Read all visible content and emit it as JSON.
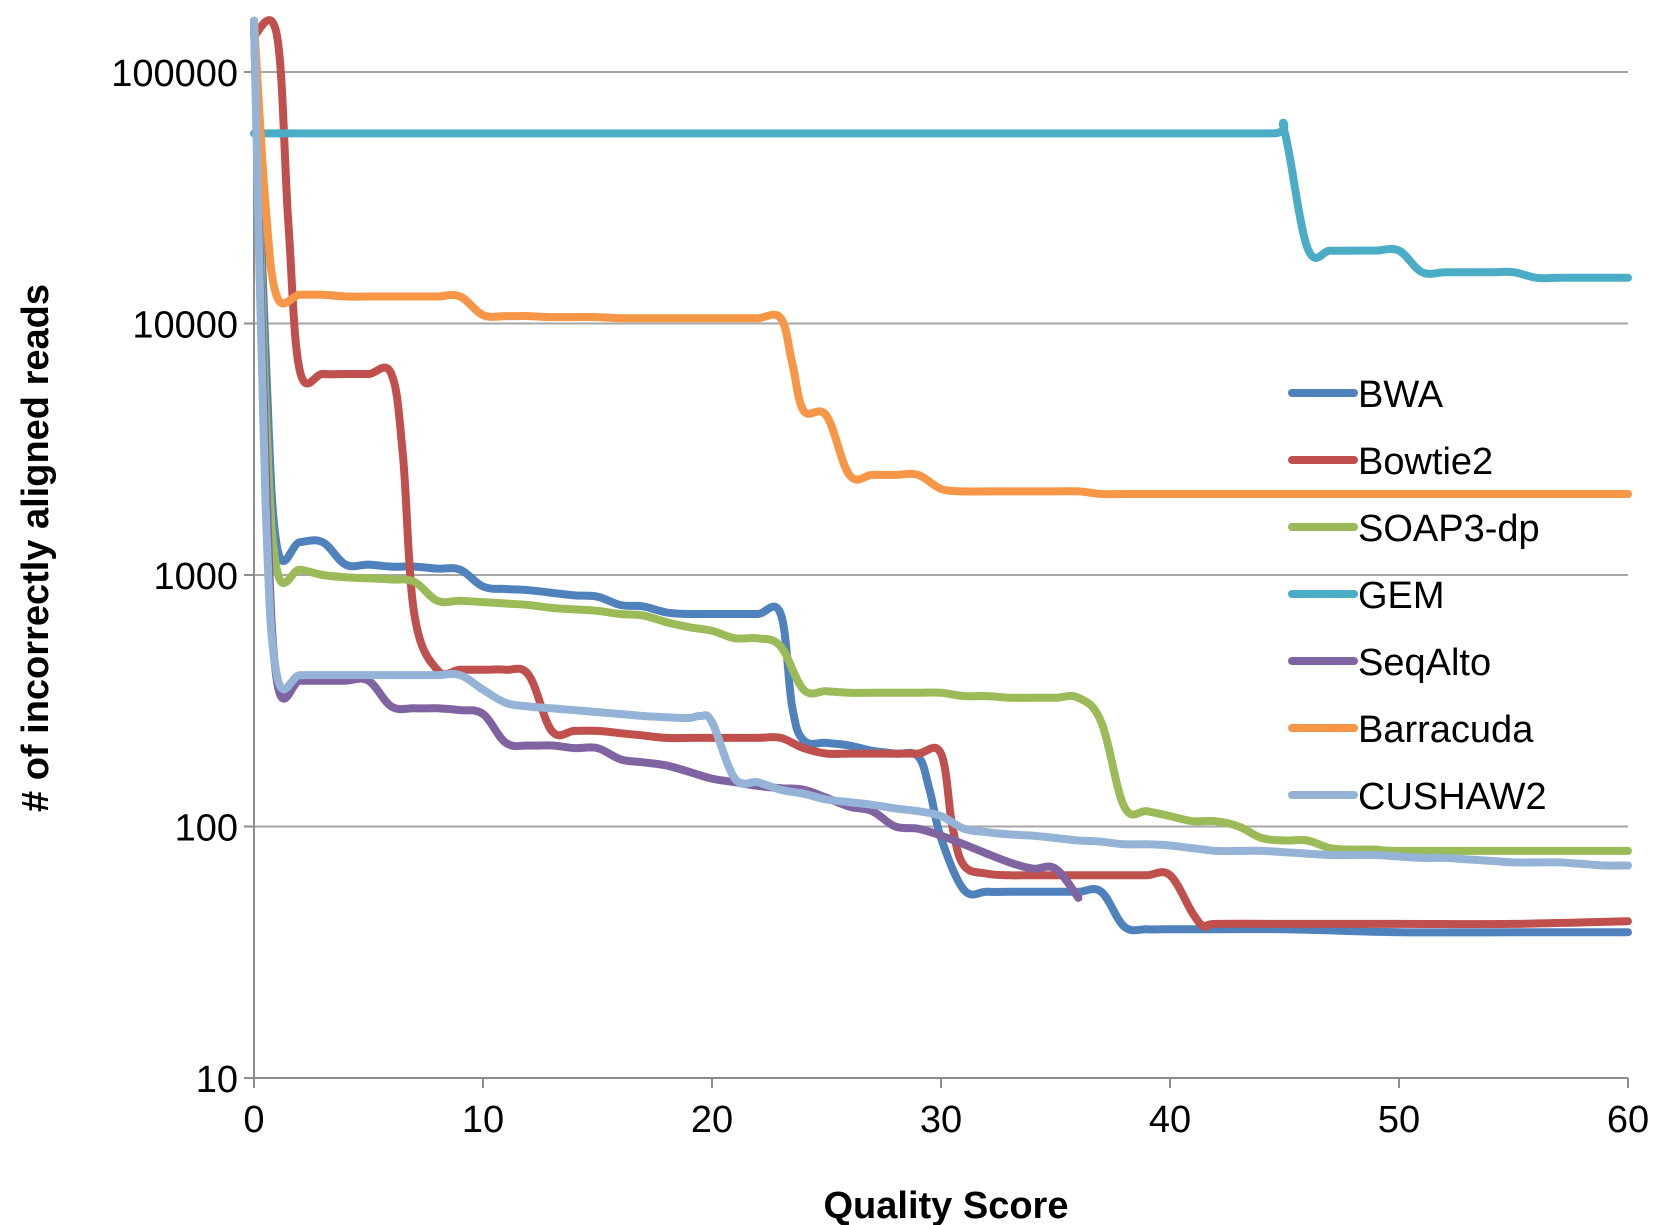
{
  "chart_data": {
    "type": "line",
    "title": "",
    "xlabel": "Quality Score",
    "ylabel": "# of incorrectly aligned reads",
    "x_scale": "linear",
    "y_scale": "log",
    "xlim": [
      0,
      60
    ],
    "ylim": [
      10,
      160000
    ],
    "x_ticks": [
      "0",
      "10",
      "20",
      "30",
      "40",
      "50",
      "60"
    ],
    "y_ticks": [
      "10",
      "100",
      "1000",
      "10000",
      "100000"
    ],
    "grid": "horizontal",
    "legend_position": "right",
    "series": [
      {
        "name": "BWA",
        "color": "#4f81bd",
        "points": [
          [
            0,
            160000
          ],
          [
            0.5,
            8000
          ],
          [
            1,
            1300
          ],
          [
            2,
            1350
          ],
          [
            3,
            1350
          ],
          [
            4,
            1100
          ],
          [
            5,
            1100
          ],
          [
            6,
            1080
          ],
          [
            7,
            1080
          ],
          [
            8,
            1060
          ],
          [
            9,
            1050
          ],
          [
            10,
            900
          ],
          [
            11,
            880
          ],
          [
            12,
            870
          ],
          [
            13,
            850
          ],
          [
            14,
            830
          ],
          [
            15,
            820
          ],
          [
            16,
            760
          ],
          [
            17,
            750
          ],
          [
            18,
            710
          ],
          [
            19,
            700
          ],
          [
            20,
            700
          ],
          [
            21,
            700
          ],
          [
            22,
            700
          ],
          [
            23,
            700
          ],
          [
            23.5,
            300
          ],
          [
            24,
            220
          ],
          [
            25,
            215
          ],
          [
            26,
            210
          ],
          [
            27,
            200
          ],
          [
            28,
            195
          ],
          [
            29,
            190
          ],
          [
            29.5,
            140
          ],
          [
            30,
            90
          ],
          [
            31,
            56
          ],
          [
            32,
            55
          ],
          [
            33,
            55
          ],
          [
            34,
            55
          ],
          [
            35,
            55
          ],
          [
            36,
            55
          ],
          [
            37,
            55
          ],
          [
            38,
            40
          ],
          [
            39,
            39
          ],
          [
            40,
            39
          ],
          [
            45,
            39
          ],
          [
            50,
            38
          ],
          [
            55,
            38
          ],
          [
            60,
            38
          ]
        ]
      },
      {
        "name": "Bowtie2",
        "color": "#c0504d",
        "points": [
          [
            0,
            140000
          ],
          [
            1,
            140000
          ],
          [
            1.5,
            25000
          ],
          [
            2,
            6500
          ],
          [
            3,
            6300
          ],
          [
            4,
            6300
          ],
          [
            5,
            6300
          ],
          [
            6,
            6300
          ],
          [
            6.5,
            3000
          ],
          [
            7,
            700
          ],
          [
            8,
            420
          ],
          [
            9,
            420
          ],
          [
            10,
            420
          ],
          [
            11,
            420
          ],
          [
            12,
            400
          ],
          [
            13,
            240
          ],
          [
            14,
            240
          ],
          [
            15,
            240
          ],
          [
            16,
            235
          ],
          [
            17,
            230
          ],
          [
            18,
            225
          ],
          [
            19,
            225
          ],
          [
            20,
            225
          ],
          [
            21,
            225
          ],
          [
            22,
            225
          ],
          [
            23,
            225
          ],
          [
            24,
            205
          ],
          [
            25,
            195
          ],
          [
            26,
            195
          ],
          [
            27,
            195
          ],
          [
            28,
            195
          ],
          [
            29,
            195
          ],
          [
            30,
            195
          ],
          [
            30.5,
            100
          ],
          [
            31,
            70
          ],
          [
            32,
            65
          ],
          [
            33,
            64
          ],
          [
            34,
            64
          ],
          [
            35,
            64
          ],
          [
            36,
            64
          ],
          [
            37,
            64
          ],
          [
            38,
            64
          ],
          [
            39,
            64
          ],
          [
            40,
            64
          ],
          [
            41,
            45
          ],
          [
            41.5,
            40
          ],
          [
            42,
            41
          ],
          [
            45,
            41
          ],
          [
            50,
            41
          ],
          [
            55,
            41
          ],
          [
            60,
            42
          ]
        ]
      },
      {
        "name": "SOAP3-dp",
        "color": "#9bbb59",
        "points": [
          [
            0,
            150000
          ],
          [
            0.5,
            5000
          ],
          [
            1,
            1050
          ],
          [
            2,
            1050
          ],
          [
            3,
            1000
          ],
          [
            4,
            980
          ],
          [
            5,
            970
          ],
          [
            6,
            960
          ],
          [
            7,
            940
          ],
          [
            8,
            790
          ],
          [
            9,
            790
          ],
          [
            10,
            780
          ],
          [
            11,
            770
          ],
          [
            12,
            760
          ],
          [
            13,
            740
          ],
          [
            14,
            730
          ],
          [
            15,
            720
          ],
          [
            16,
            700
          ],
          [
            17,
            690
          ],
          [
            18,
            650
          ],
          [
            19,
            620
          ],
          [
            20,
            600
          ],
          [
            21,
            560
          ],
          [
            22,
            560
          ],
          [
            23,
            520
          ],
          [
            24,
            350
          ],
          [
            25,
            345
          ],
          [
            26,
            340
          ],
          [
            27,
            340
          ],
          [
            28,
            340
          ],
          [
            29,
            340
          ],
          [
            30,
            340
          ],
          [
            31,
            330
          ],
          [
            32,
            330
          ],
          [
            33,
            325
          ],
          [
            34,
            325
          ],
          [
            35,
            325
          ],
          [
            36,
            325
          ],
          [
            37,
            260
          ],
          [
            38,
            120
          ],
          [
            39,
            115
          ],
          [
            40,
            110
          ],
          [
            41,
            105
          ],
          [
            42,
            105
          ],
          [
            43,
            100
          ],
          [
            44,
            90
          ],
          [
            45,
            88
          ],
          [
            46,
            88
          ],
          [
            47,
            82
          ],
          [
            48,
            81
          ],
          [
            49,
            81
          ],
          [
            50,
            80
          ],
          [
            55,
            80
          ],
          [
            60,
            80
          ]
        ]
      },
      {
        "name": "GEM",
        "color": "#4bacc6",
        "points": [
          [
            0,
            57000
          ],
          [
            5,
            57000
          ],
          [
            10,
            57000
          ],
          [
            20,
            57000
          ],
          [
            30,
            57000
          ],
          [
            40,
            57000
          ],
          [
            44.5,
            57000
          ],
          [
            45,
            58000
          ],
          [
            46,
            20000
          ],
          [
            47,
            19500
          ],
          [
            48,
            19500
          ],
          [
            49,
            19500
          ],
          [
            50,
            19500
          ],
          [
            51,
            16000
          ],
          [
            52,
            16000
          ],
          [
            53,
            16000
          ],
          [
            54,
            16000
          ],
          [
            55,
            16000
          ],
          [
            56,
            15200
          ],
          [
            57,
            15200
          ],
          [
            58,
            15200
          ],
          [
            60,
            15200
          ]
        ]
      },
      {
        "name": "SeqAlto",
        "color": "#8064a2",
        "points": [
          [
            0,
            160000
          ],
          [
            0.5,
            3000
          ],
          [
            1,
            380
          ],
          [
            2,
            380
          ],
          [
            3,
            380
          ],
          [
            4,
            380
          ],
          [
            5,
            380
          ],
          [
            6,
            300
          ],
          [
            7,
            295
          ],
          [
            8,
            295
          ],
          [
            9,
            290
          ],
          [
            10,
            280
          ],
          [
            11,
            215
          ],
          [
            12,
            210
          ],
          [
            13,
            210
          ],
          [
            14,
            205
          ],
          [
            15,
            205
          ],
          [
            16,
            185
          ],
          [
            17,
            180
          ],
          [
            18,
            175
          ],
          [
            19,
            165
          ],
          [
            20,
            155
          ],
          [
            21,
            150
          ],
          [
            22,
            145
          ],
          [
            23,
            142
          ],
          [
            24,
            140
          ],
          [
            25,
            130
          ],
          [
            26,
            120
          ],
          [
            27,
            115
          ],
          [
            28,
            100
          ],
          [
            29,
            98
          ],
          [
            30,
            92
          ],
          [
            31,
            85
          ],
          [
            32,
            78
          ],
          [
            33,
            72
          ],
          [
            34,
            68
          ],
          [
            35,
            68
          ],
          [
            36,
            52
          ]
        ]
      },
      {
        "name": "Barracuda",
        "color": "#f79646",
        "points": [
          [
            0,
            160000
          ],
          [
            0.5,
            30000
          ],
          [
            1,
            12800
          ],
          [
            2,
            13000
          ],
          [
            3,
            13000
          ],
          [
            4,
            12800
          ],
          [
            5,
            12800
          ],
          [
            6,
            12800
          ],
          [
            7,
            12800
          ],
          [
            8,
            12800
          ],
          [
            9,
            12800
          ],
          [
            10,
            10800
          ],
          [
            11,
            10700
          ],
          [
            12,
            10700
          ],
          [
            13,
            10600
          ],
          [
            14,
            10600
          ],
          [
            15,
            10600
          ],
          [
            16,
            10500
          ],
          [
            17,
            10500
          ],
          [
            18,
            10500
          ],
          [
            19,
            10500
          ],
          [
            20,
            10500
          ],
          [
            21,
            10500
          ],
          [
            22,
            10500
          ],
          [
            23,
            10500
          ],
          [
            23.5,
            7000
          ],
          [
            24,
            4500
          ],
          [
            25,
            4300
          ],
          [
            26,
            2500
          ],
          [
            27,
            2500
          ],
          [
            28,
            2500
          ],
          [
            29,
            2500
          ],
          [
            30,
            2200
          ],
          [
            31,
            2150
          ],
          [
            32,
            2150
          ],
          [
            33,
            2150
          ],
          [
            34,
            2150
          ],
          [
            35,
            2150
          ],
          [
            36,
            2150
          ],
          [
            37,
            2100
          ],
          [
            38,
            2100
          ],
          [
            40,
            2100
          ],
          [
            45,
            2100
          ],
          [
            50,
            2100
          ],
          [
            55,
            2100
          ],
          [
            60,
            2100
          ]
        ]
      },
      {
        "name": "CUSHAW2",
        "color": "#95b3d7",
        "points": [
          [
            0,
            160000
          ],
          [
            0.5,
            2000
          ],
          [
            1,
            400
          ],
          [
            2,
            400
          ],
          [
            3,
            400
          ],
          [
            4,
            400
          ],
          [
            5,
            400
          ],
          [
            6,
            400
          ],
          [
            7,
            400
          ],
          [
            8,
            400
          ],
          [
            9,
            400
          ],
          [
            10,
            350
          ],
          [
            11,
            310
          ],
          [
            12,
            300
          ],
          [
            13,
            295
          ],
          [
            14,
            290
          ],
          [
            15,
            285
          ],
          [
            16,
            280
          ],
          [
            17,
            275
          ],
          [
            18,
            272
          ],
          [
            19,
            270
          ],
          [
            19.5,
            275
          ],
          [
            20,
            260
          ],
          [
            21,
            155
          ],
          [
            22,
            150
          ],
          [
            23,
            140
          ],
          [
            24,
            135
          ],
          [
            25,
            128
          ],
          [
            26,
            125
          ],
          [
            27,
            122
          ],
          [
            28,
            118
          ],
          [
            29,
            115
          ],
          [
            30,
            110
          ],
          [
            31,
            98
          ],
          [
            32,
            95
          ],
          [
            33,
            93
          ],
          [
            34,
            92
          ],
          [
            35,
            90
          ],
          [
            36,
            88
          ],
          [
            37,
            87
          ],
          [
            38,
            85
          ],
          [
            39,
            85
          ],
          [
            40,
            84
          ],
          [
            41,
            82
          ],
          [
            42,
            80
          ],
          [
            43,
            80
          ],
          [
            44,
            80
          ],
          [
            45,
            79
          ],
          [
            46,
            78
          ],
          [
            47,
            77
          ],
          [
            48,
            77
          ],
          [
            49,
            77
          ],
          [
            50,
            76
          ],
          [
            51,
            75
          ],
          [
            52,
            75
          ],
          [
            53,
            74
          ],
          [
            54,
            73
          ],
          [
            55,
            72
          ],
          [
            56,
            72
          ],
          [
            57,
            72
          ],
          [
            58,
            71
          ],
          [
            59,
            70
          ],
          [
            60,
            70
          ]
        ]
      }
    ]
  }
}
